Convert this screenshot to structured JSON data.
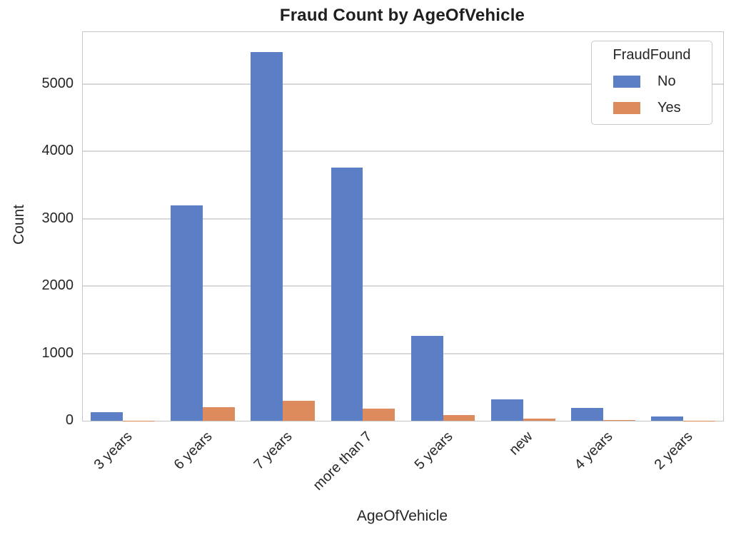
{
  "chart_data": {
    "type": "bar",
    "title": "Fraud Count by AgeOfVehicle",
    "xlabel": "AgeOfVehicle",
    "ylabel": "Count",
    "legend_title": "FraudFound",
    "legend_position": "upper right",
    "grid": true,
    "categories": [
      "3 years",
      "6 years",
      "7 years",
      "more than 7",
      "5 years",
      "new",
      "4 years",
      "2 years"
    ],
    "series": [
      {
        "name": "No",
        "color": "#5b7ec4",
        "values": [
          130,
          3200,
          5470,
          3760,
          1255,
          315,
          190,
          65
        ]
      },
      {
        "name": "Yes",
        "color": "#dd8a5c",
        "values": [
          4,
          200,
          300,
          180,
          85,
          28,
          10,
          2
        ]
      }
    ],
    "ylim": [
      0,
      5770
    ],
    "yticks": [
      0,
      1000,
      2000,
      3000,
      4000,
      5000
    ]
  }
}
